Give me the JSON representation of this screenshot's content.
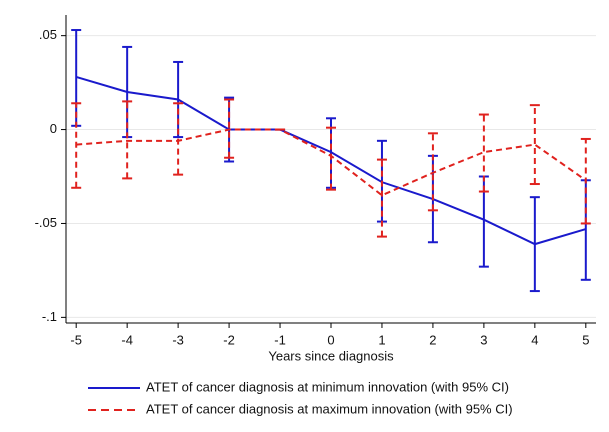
{
  "chart_data": {
    "type": "line",
    "x_label": "Years since diagnosis",
    "x": [
      -5,
      -4,
      -3,
      -2,
      -1,
      0,
      1,
      2,
      3,
      4,
      5
    ],
    "xlim": [
      -5.2,
      5.2
    ],
    "xticks": [
      -5,
      -4,
      -3,
      -2,
      -1,
      0,
      1,
      2,
      3,
      4,
      5
    ],
    "ylim": [
      -0.103,
      0.061
    ],
    "yticks": [
      {
        "value": 0.05,
        "label": ".05"
      },
      0,
      {
        "value": -0.05,
        "label": "-.05"
      },
      {
        "value": -0.1,
        "label": "-.1"
      }
    ],
    "grid": true,
    "series": [
      {
        "name": "ATET of cancer diagnosis at minimum innovation (with 95% CI)",
        "color": "#1a1acc",
        "dashed": false,
        "values": [
          0.028,
          0.02,
          0.016,
          0,
          0,
          -0.012,
          -0.028,
          -0.037,
          -0.048,
          -0.061,
          -0.053
        ],
        "ci_low": [
          0.002,
          -0.004,
          -0.004,
          -0.017,
          0,
          -0.031,
          -0.049,
          -0.06,
          -0.073,
          -0.086,
          -0.08
        ],
        "ci_high": [
          0.053,
          0.044,
          0.036,
          0.017,
          0,
          0.006,
          -0.006,
          -0.014,
          -0.025,
          -0.036,
          -0.027
        ]
      },
      {
        "name": "ATET of cancer diagnosis at maximum innovation (with 95% CI)",
        "color": "#e0221e",
        "dashed": true,
        "values": [
          -0.008,
          -0.006,
          -0.006,
          0,
          0,
          -0.014,
          -0.035,
          -0.023,
          -0.012,
          -0.008,
          -0.027
        ],
        "ci_low": [
          -0.031,
          -0.026,
          -0.024,
          -0.015,
          0,
          -0.032,
          -0.057,
          -0.043,
          -0.033,
          -0.029,
          -0.05
        ],
        "ci_high": [
          0.014,
          0.015,
          0.014,
          0.016,
          0,
          0.001,
          -0.016,
          -0.002,
          0.008,
          0.013,
          -0.005
        ]
      }
    ]
  }
}
